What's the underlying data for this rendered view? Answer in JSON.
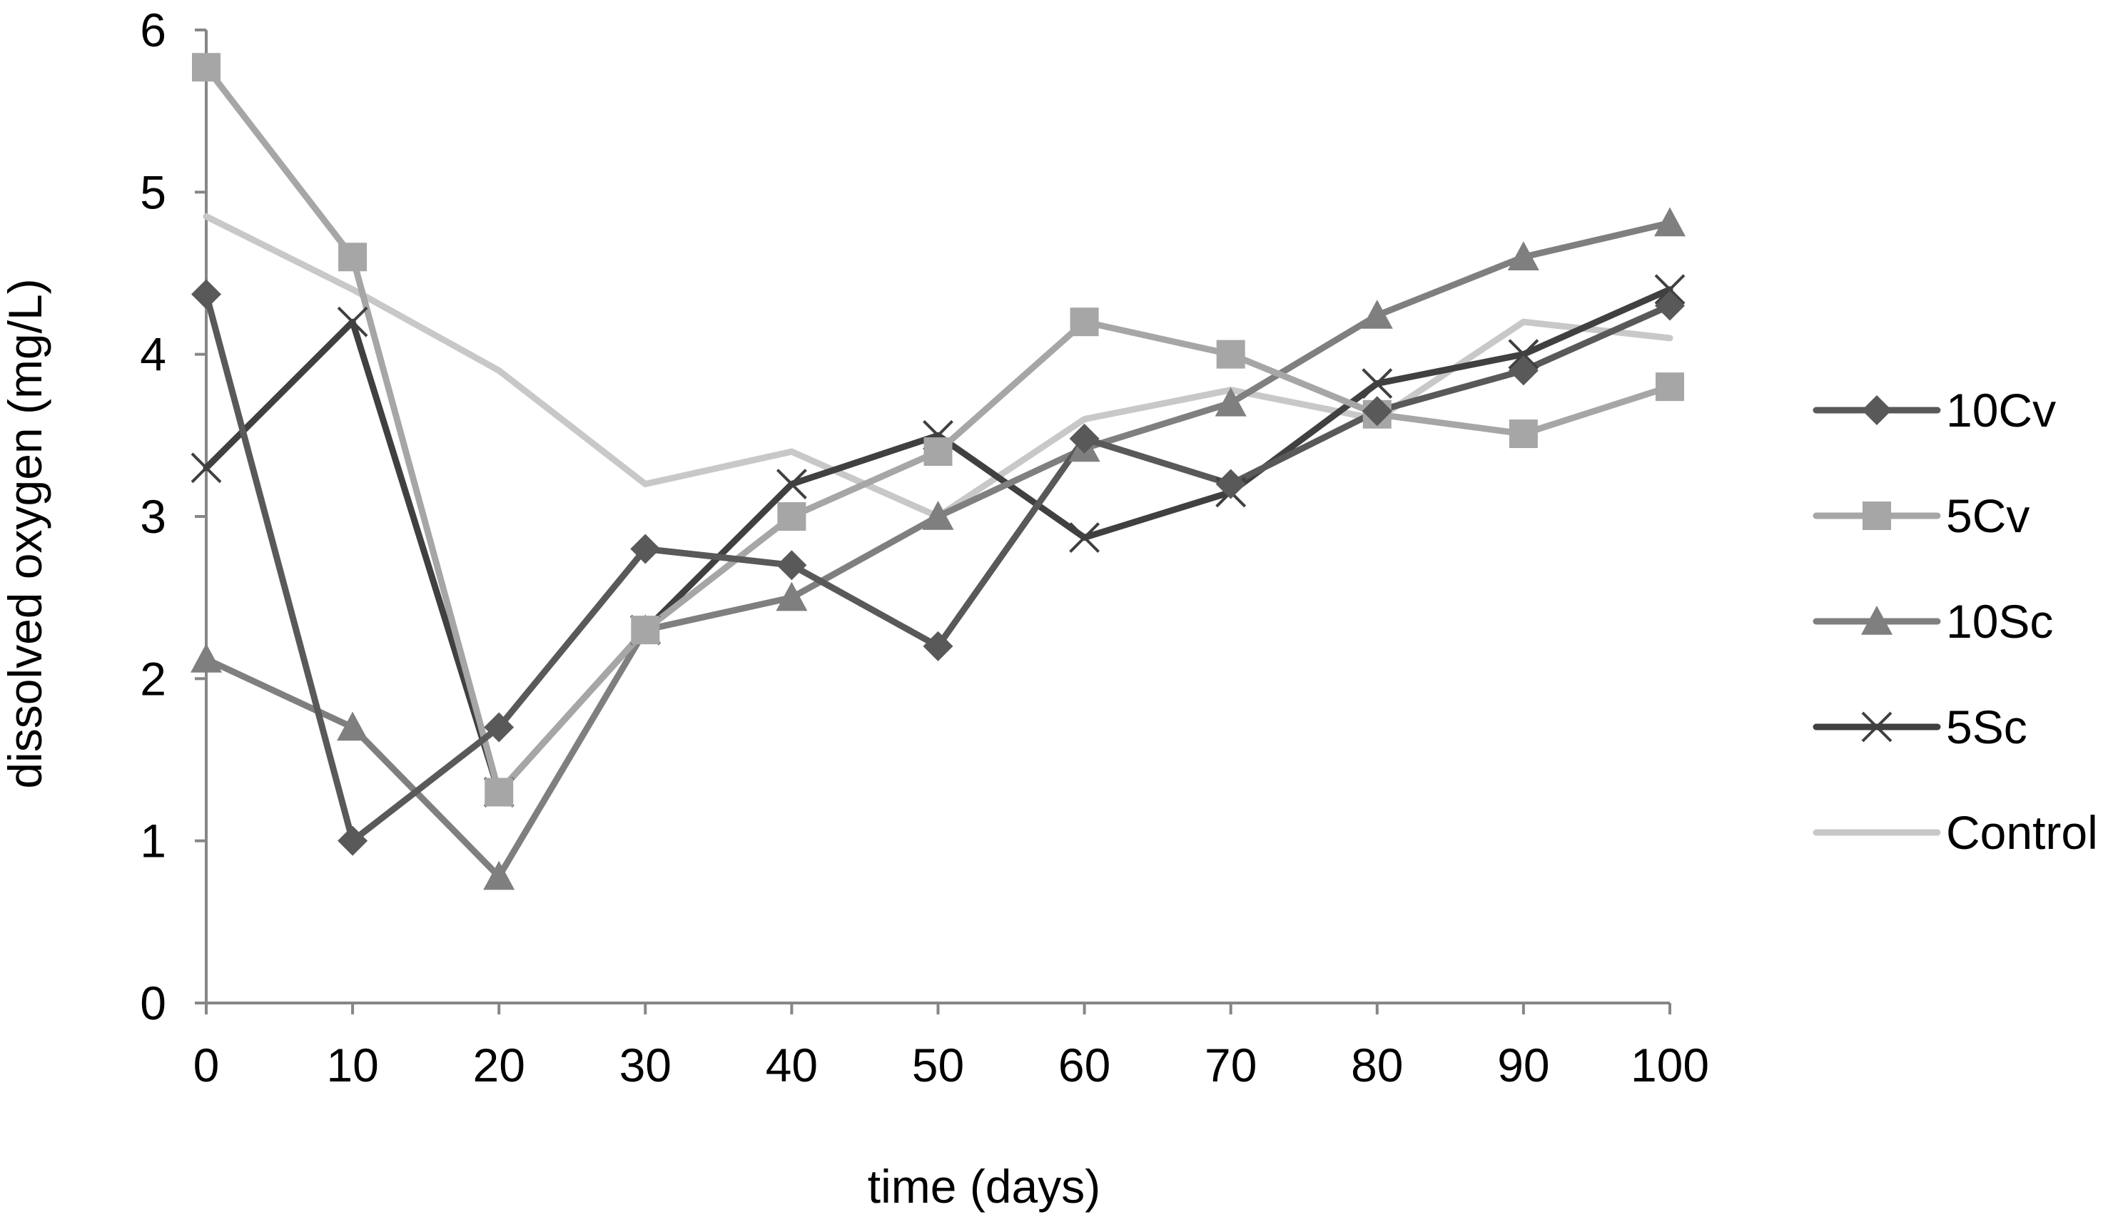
{
  "chart_data": {
    "type": "line",
    "title": "",
    "xlabel": "time (days)",
    "ylabel": "dissolved oxygen (mg/L)",
    "x": [
      0,
      10,
      20,
      30,
      40,
      50,
      60,
      70,
      80,
      90,
      100
    ],
    "x_tick_labels": [
      "0",
      "10",
      "20",
      "30",
      "40",
      "50",
      "60",
      "70",
      "80",
      "90",
      "100"
    ],
    "y_tick_labels": [
      "0",
      "1",
      "2",
      "3",
      "4",
      "5",
      "6"
    ],
    "xlim": [
      0,
      100
    ],
    "ylim": [
      0,
      6
    ],
    "grid": false,
    "legend_position": "right",
    "series": [
      {
        "name": "10Cv",
        "marker": "diamond",
        "color": "#595959",
        "values": [
          4.37,
          1.0,
          1.7,
          2.8,
          2.7,
          2.2,
          3.48,
          3.2,
          3.65,
          3.9,
          4.3
        ]
      },
      {
        "name": "5Cv",
        "marker": "square",
        "color": "#a6a6a6",
        "values": [
          5.77,
          4.6,
          1.3,
          2.3,
          3.0,
          3.4,
          4.2,
          4.0,
          3.63,
          3.51,
          3.8
        ]
      },
      {
        "name": "10Sc",
        "marker": "triangle",
        "color": "#7f7f7f",
        "values": [
          2.12,
          1.7,
          0.78,
          2.3,
          2.5,
          3.0,
          3.42,
          3.7,
          4.24,
          4.6,
          4.81
        ]
      },
      {
        "name": "5Sc",
        "marker": "x",
        "color": "#404040",
        "values": [
          3.3,
          4.2,
          1.3,
          2.3,
          3.2,
          3.5,
          2.87,
          3.15,
          3.82,
          4.0,
          4.4
        ]
      },
      {
        "name": "Control",
        "marker": "none",
        "color": "#c8c8c8",
        "values": [
          4.85,
          4.4,
          3.9,
          3.2,
          3.4,
          3.0,
          3.6,
          3.78,
          3.6,
          4.2,
          4.1
        ]
      }
    ]
  }
}
